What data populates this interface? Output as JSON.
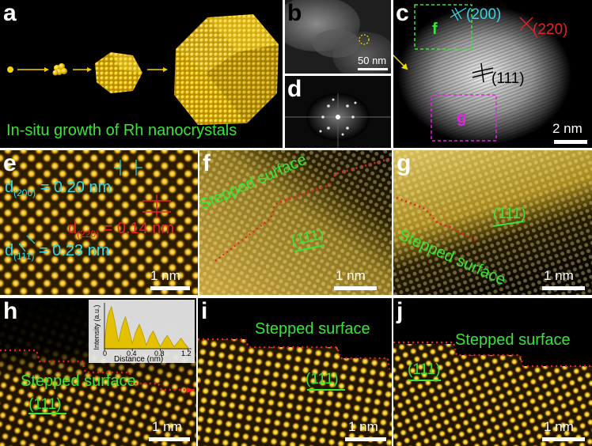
{
  "colors": {
    "green": "#37e637",
    "cyan": "#35d6e8",
    "red": "#e8202a",
    "magenta": "#e024e0",
    "gold": "#f2c200"
  },
  "panels": {
    "a": {
      "label": "a",
      "caption": "In-situ growth of Rh nanocrystals"
    },
    "b": {
      "label": "b",
      "scale": "50 nm"
    },
    "c": {
      "label": "c",
      "plane_200": "(200)",
      "plane_220": "(220)",
      "plane_111": "(111)",
      "box_f": "f",
      "box_g": "g",
      "scale": "2 nm"
    },
    "d": {
      "label": "d"
    },
    "e": {
      "label": "e",
      "d200_main": "d",
      "d200_sub": "(200)",
      "d200_val": " = 0.20 nm",
      "d220_main": "d",
      "d220_sub": "(220)",
      "d220_val": " = 0.14 nm",
      "d111_main": "d",
      "d111_sub": "(111)",
      "d111_val": " = 0.23 nm",
      "scale": "1 nm"
    },
    "f": {
      "label": "f",
      "surface": "Stepped surface",
      "plane": "(111)",
      "scale": "1 nm"
    },
    "g": {
      "label": "g",
      "surface": "Stepped surface",
      "plane": "(111)",
      "scale": "1 nm"
    },
    "h": {
      "label": "h",
      "surface": "Stepped surface",
      "plane": "(111)",
      "scale": "1 nm",
      "inset": {
        "ylabel": "Intensity (a.u.)",
        "xlabel": "Distance (nm)",
        "ticks": [
          "0",
          "0.4",
          "0.8",
          "1.2"
        ]
      }
    },
    "i": {
      "label": "i",
      "surface": "Stepped surface",
      "plane": "(111)",
      "scale": "1 nm"
    },
    "j": {
      "label": "j",
      "surface": "Stepped surface",
      "plane": "(111)",
      "scale": "1 nm"
    }
  },
  "chart_data": {
    "type": "line",
    "title": "",
    "xlabel": "Distance (nm)",
    "ylabel": "Intensity (a.u.)",
    "xlim": [
      0,
      1.25
    ],
    "xticks": [
      0,
      0.4,
      0.8,
      1.2
    ],
    "x": [
      0,
      0.05,
      0.1,
      0.15,
      0.2,
      0.25,
      0.3,
      0.35,
      0.4,
      0.45,
      0.5,
      0.55,
      0.6,
      0.65,
      0.7,
      0.75,
      0.8,
      0.85,
      0.9,
      0.95,
      1.0,
      1.05,
      1.1,
      1.15,
      1.2
    ],
    "y": [
      0.2,
      0.75,
      0.95,
      0.6,
      0.15,
      0.5,
      0.72,
      0.45,
      0.12,
      0.38,
      0.55,
      0.35,
      0.08,
      0.28,
      0.4,
      0.22,
      0.05,
      0.18,
      0.3,
      0.18,
      0.04,
      0.14,
      0.24,
      0.12,
      0.03
    ]
  }
}
